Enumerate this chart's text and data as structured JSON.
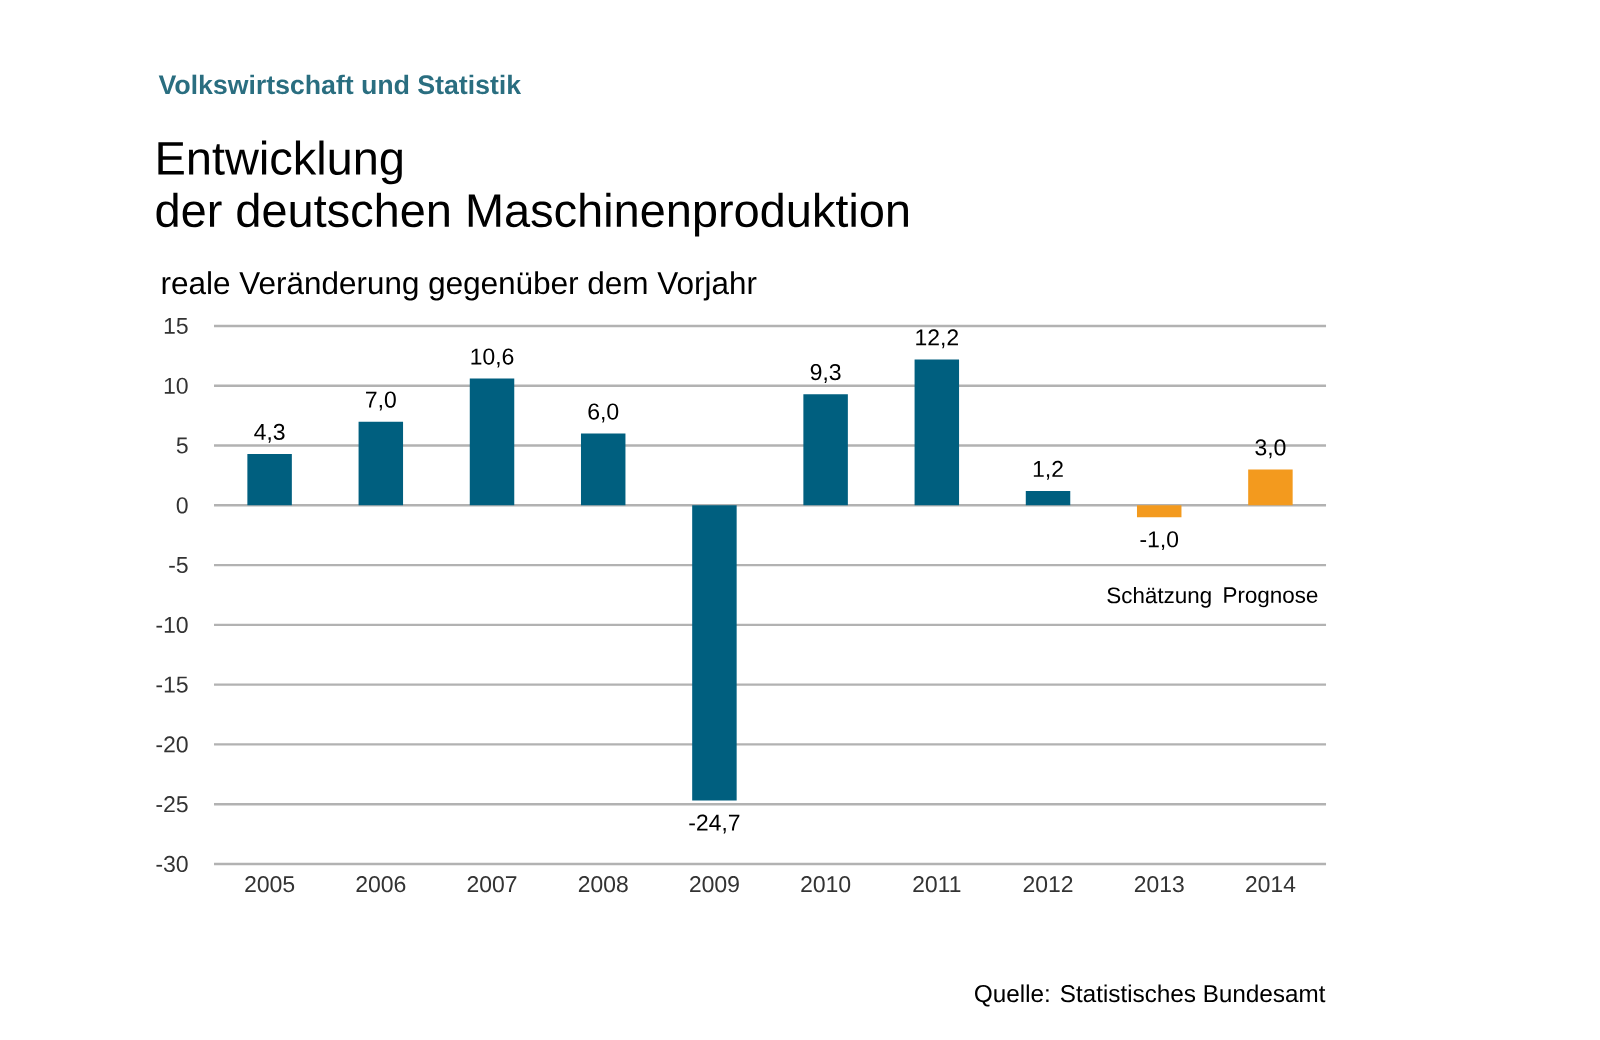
{
  "chart_data": {
    "type": "bar",
    "title": "Entwicklung\nder deutschen Maschinenproduktion",
    "subtitle": "Volkswirtschaft und Statistik",
    "ylabel": "reale Veränderung gegenüber dem Vorjahr",
    "categories": [
      "2005",
      "2006",
      "2007",
      "2008",
      "2009",
      "2010",
      "2011",
      "2012",
      "2013",
      "2014"
    ],
    "values": [
      4.3,
      7.0,
      10.6,
      6.0,
      -24.7,
      9.3,
      12.2,
      1.2,
      -1.0,
      3.0
    ],
    "colors": [
      "#005f7f",
      "#005f7f",
      "#005f7f",
      "#005f7f",
      "#005f7f",
      "#005f7f",
      "#005f7f",
      "#005f7f",
      "#f39a1e",
      "#f39a1e"
    ],
    "value_labels": [
      "4,3",
      "7,0",
      "10,6",
      "6,0",
      "-24,7",
      "9,3",
      "12,2",
      "1,2",
      "-1,0",
      "3,0"
    ],
    "ylim": [
      -30,
      15
    ],
    "yticks": [
      -30,
      -25,
      -20,
      -15,
      -10,
      -5,
      0,
      5,
      10,
      15
    ],
    "grid": "y",
    "annotations": [
      "Schätzung",
      "Prognose",
      "Quelle: Statistisches Bundesamt"
    ]
  }
}
